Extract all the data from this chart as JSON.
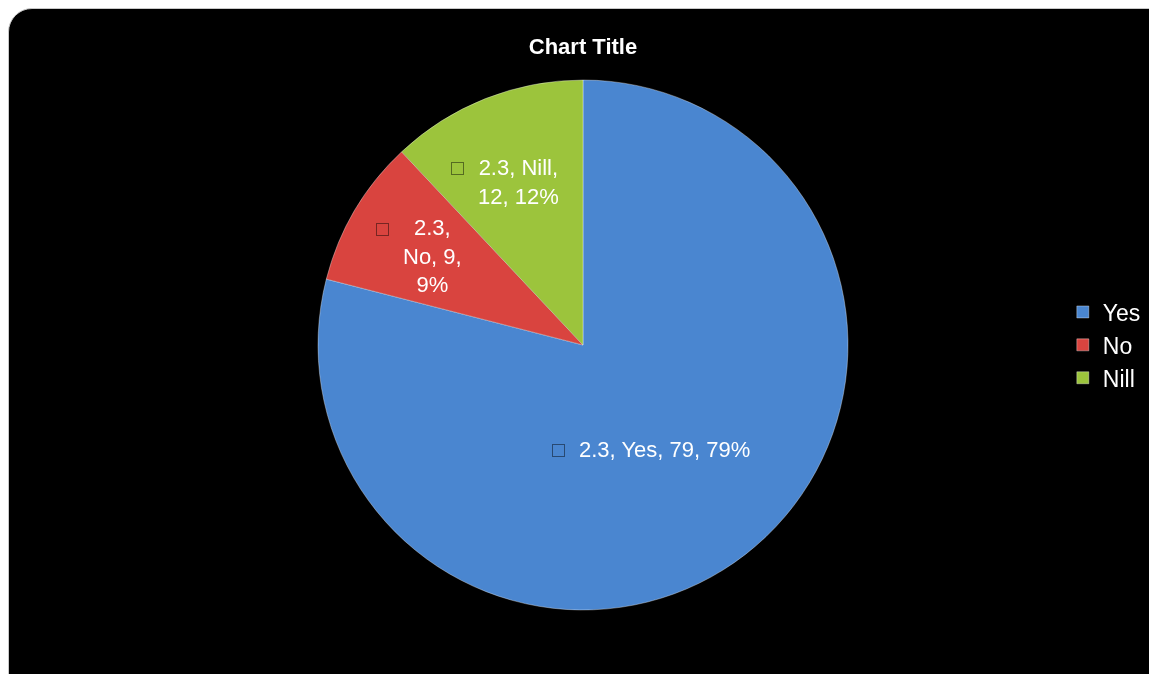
{
  "chart_data": {
    "type": "pie",
    "title": "Chart Title",
    "categories": [
      "Yes",
      "No",
      "Nill"
    ],
    "values": [
      79,
      9,
      12
    ],
    "colors": [
      "#4a86d0",
      "#d9443f",
      "#9cc43c"
    ],
    "value_labels": [
      "2.3, Yes, 79, 79%",
      "2.3, No, 9, 9%",
      "2.3, Nill, 12, 12%"
    ],
    "legend": "right"
  }
}
